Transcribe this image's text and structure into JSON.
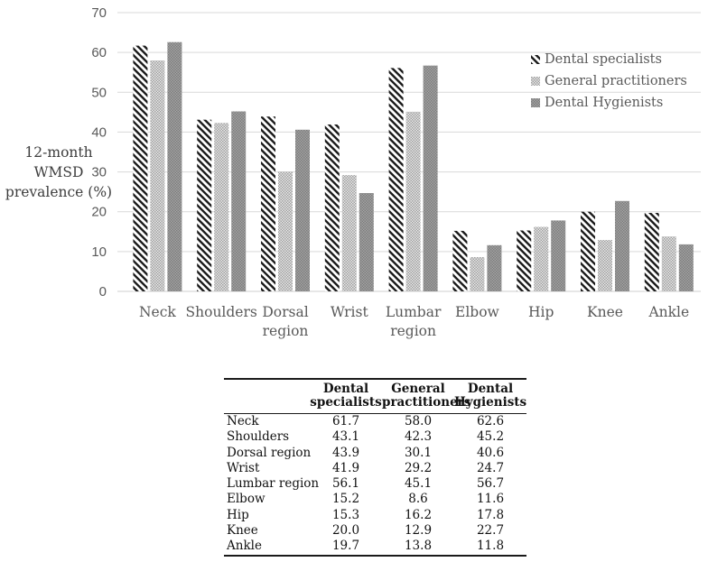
{
  "chart": {
    "ylabel_lines": [
      "12-month",
      "WMSD",
      "prevalence (%)"
    ]
  },
  "chart_data": {
    "type": "bar",
    "title": "",
    "xlabel": "",
    "ylabel": "12-month WMSD prevalence (%)",
    "ylim": [
      0,
      70
    ],
    "y_ticks": [
      0,
      10,
      20,
      30,
      40,
      50,
      60,
      70
    ],
    "grid": true,
    "legend_position": "upper-right",
    "categories": [
      "Neck",
      "Shoulders",
      "Dorsal region",
      "Wrist",
      "Lumbar region",
      "Elbow",
      "Hip",
      "Knee",
      "Ankle"
    ],
    "series": [
      {
        "name": "Dental specialists",
        "pattern": "black-diagonal-stripes",
        "values": [
          61.7,
          43.1,
          43.9,
          41.9,
          56.1,
          15.2,
          15.3,
          20.0,
          19.7
        ]
      },
      {
        "name": "General practitioners",
        "pattern": "light-gray-fine-check",
        "values": [
          58.0,
          42.3,
          30.1,
          29.2,
          45.1,
          8.6,
          16.2,
          12.9,
          13.8
        ]
      },
      {
        "name": "Dental Hygienists",
        "pattern": "dark-gray-fine-check",
        "values": [
          62.6,
          45.2,
          40.6,
          24.7,
          56.7,
          11.6,
          17.8,
          22.7,
          11.8
        ]
      }
    ]
  },
  "table": {
    "col_headers": [
      {
        "line1": "Dental",
        "line2": "specialists"
      },
      {
        "line1": "General",
        "line2": "practitioners"
      },
      {
        "line1": "Dental",
        "line2": "Hygienists"
      }
    ],
    "rows": [
      {
        "label": "Neck",
        "values": [
          "61.7",
          "58.0",
          "62.6"
        ]
      },
      {
        "label": "Shoulders",
        "values": [
          "43.1",
          "42.3",
          "45.2"
        ]
      },
      {
        "label": "Dorsal region",
        "values": [
          "43.9",
          "30.1",
          "40.6"
        ]
      },
      {
        "label": "Wrist",
        "values": [
          "41.9",
          "29.2",
          "24.7"
        ]
      },
      {
        "label": "Lumbar region",
        "values": [
          "56.1",
          "45.1",
          "56.7"
        ]
      },
      {
        "label": "Elbow",
        "values": [
          "15.2",
          "8.6",
          "11.6"
        ]
      },
      {
        "label": "Hip",
        "values": [
          "15.3",
          "16.2",
          "17.8"
        ]
      },
      {
        "label": "Knee",
        "values": [
          "20.0",
          "12.9",
          "22.7"
        ]
      },
      {
        "label": "Ankle",
        "values": [
          "19.7",
          "13.8",
          "11.8"
        ]
      }
    ]
  },
  "colors": {
    "gridline": "#d9d9d9",
    "tick_label": "#595959",
    "category_label": "#595959",
    "legend_text": "#595959",
    "stripe_black": "#1a1a1a",
    "light_pattern_avg": "#c4c4c4",
    "dark_pattern_avg": "#909090",
    "table_rule": "#1a1a1a"
  }
}
